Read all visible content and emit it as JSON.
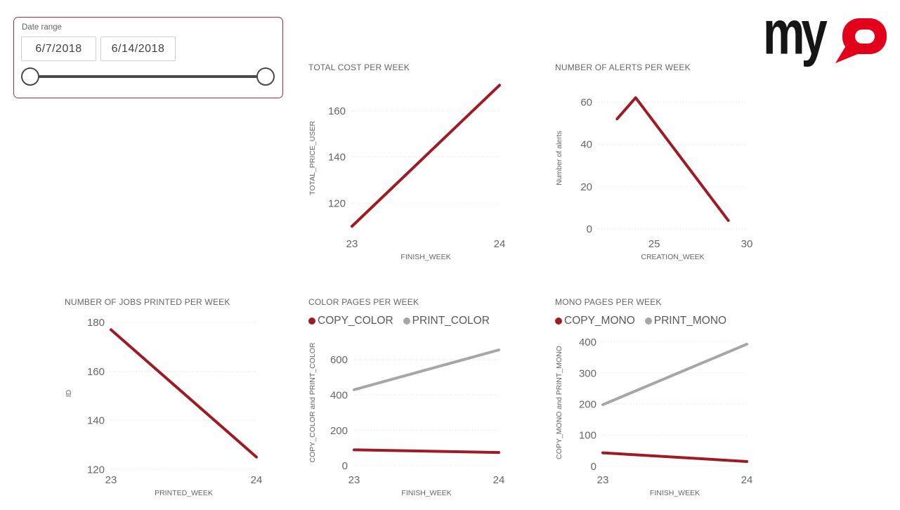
{
  "slicer": {
    "label": "Date range",
    "start_date": "6/7/2018",
    "end_date": "6/14/2018"
  },
  "logo": {
    "black": "my",
    "red": "Q"
  },
  "colors": {
    "red": "#9E1B23",
    "gray": "#A6A6A6",
    "grid": "#D9D9D9",
    "axis_text": "#666666",
    "legend_text": "#595959",
    "logo_black": "#151515",
    "logo_red": "#E3001B",
    "slicer_border": "#B02A33",
    "slider": "#4A4A4A"
  },
  "chart_data": [
    {
      "type": "line",
      "title": "TOTAL COST PER WEEK",
      "xlabel": "FINISH_WEEK",
      "ylabel": "TOTAL_PRICE_USER",
      "xlim": [
        23,
        24
      ],
      "ylim": [
        107,
        172
      ],
      "xticks": [
        23,
        24
      ],
      "yticks": [
        120,
        140,
        160
      ],
      "grid": "dotted-horizontal",
      "legend": null,
      "series": [
        {
          "name": "TOTAL_PRICE_USER",
          "color": "red",
          "x": [
            23,
            24
          ],
          "y": [
            110,
            171
          ]
        }
      ]
    },
    {
      "type": "line",
      "title": "NUMBER OF ALERTS PER WEEK",
      "xlabel": "CREATION_WEEK",
      "ylabel": "Number of alerts",
      "xlim": [
        22,
        30
      ],
      "ylim": [
        -2,
        69
      ],
      "xticks": [
        25,
        30
      ],
      "yticks": [
        0,
        20,
        40,
        60
      ],
      "grid": "dotted-horizontal",
      "legend": null,
      "series": [
        {
          "name": "Number of alerts",
          "color": "red",
          "x": [
            23,
            24,
            29
          ],
          "y": [
            52,
            62,
            4
          ]
        }
      ]
    },
    {
      "type": "line",
      "title": "NUMBER OF JOBS PRINTED PER WEEK",
      "xlabel": "PRINTED_WEEK",
      "ylabel": "ID",
      "xlim": [
        23,
        24
      ],
      "ylim": [
        120,
        182
      ],
      "xticks": [
        23,
        24
      ],
      "yticks": [
        120,
        140,
        160,
        180
      ],
      "grid": "dotted-horizontal",
      "legend": null,
      "series": [
        {
          "name": "ID",
          "color": "red",
          "x": [
            23,
            24
          ],
          "y": [
            177,
            125
          ]
        }
      ]
    },
    {
      "type": "line",
      "title": "COLOR PAGES PER WEEK",
      "xlabel": "FINISH_WEEK",
      "ylabel": "COPY_COLOR and PRINT_COLOR",
      "xlim": [
        23,
        24
      ],
      "ylim": [
        -20,
        735
      ],
      "xticks": [
        23,
        24
      ],
      "yticks": [
        0,
        200,
        400,
        600
      ],
      "grid": "dotted-horizontal",
      "legend": [
        {
          "name": "COPY_COLOR",
          "color": "red"
        },
        {
          "name": "PRINT_COLOR",
          "color": "gray"
        }
      ],
      "series": [
        {
          "name": "COPY_COLOR",
          "color": "red",
          "x": [
            23,
            24
          ],
          "y": [
            90,
            75
          ]
        },
        {
          "name": "PRINT_COLOR",
          "color": "gray",
          "x": [
            23,
            24
          ],
          "y": [
            430,
            655
          ]
        }
      ]
    },
    {
      "type": "line",
      "title": "MONO PAGES PER WEEK",
      "xlabel": "FINISH_WEEK",
      "ylabel": "COPY_MONO and PRINT_MONO",
      "xlim": [
        23,
        24
      ],
      "ylim": [
        -10,
        420
      ],
      "xticks": [
        23,
        24
      ],
      "yticks": [
        0,
        100,
        200,
        300,
        400
      ],
      "grid": "dotted-horizontal",
      "legend": [
        {
          "name": "COPY_MONO",
          "color": "red"
        },
        {
          "name": "PRINT_MONO",
          "color": "gray"
        }
      ],
      "series": [
        {
          "name": "COPY_MONO",
          "color": "red",
          "x": [
            23,
            24
          ],
          "y": [
            43,
            15
          ]
        },
        {
          "name": "PRINT_MONO",
          "color": "gray",
          "x": [
            23,
            24
          ],
          "y": [
            198,
            393
          ]
        }
      ]
    }
  ]
}
